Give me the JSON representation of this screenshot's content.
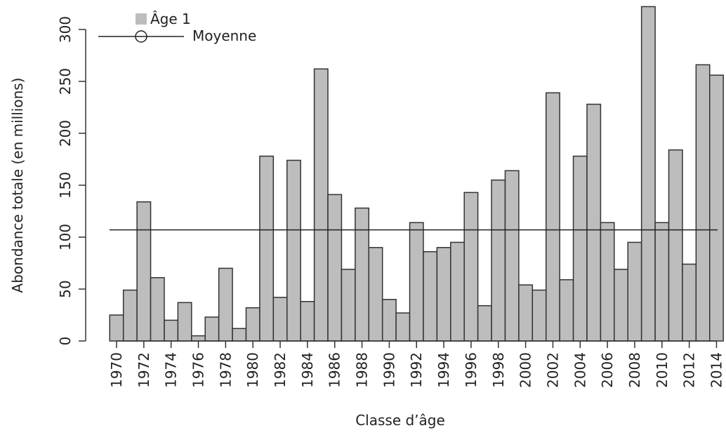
{
  "chart_data": {
    "type": "bar",
    "categories": [
      "1970",
      null,
      "1972",
      null,
      "1974",
      null,
      "1976",
      null,
      "1978",
      null,
      "1980",
      null,
      "1982",
      null,
      "1984",
      null,
      "1986",
      null,
      "1988",
      null,
      "1990",
      null,
      "1992",
      null,
      "1994",
      null,
      "1996",
      null,
      "1998",
      null,
      "2000",
      null,
      "2002",
      null,
      "2004",
      null,
      "2006",
      null,
      "2008",
      null,
      "2010",
      null,
      "2012",
      null,
      "2014"
    ],
    "series": [
      {
        "name": "Âge 1",
        "color": "#bdbdbd",
        "values": [
          25,
          49,
          134,
          61,
          20,
          37,
          5,
          23,
          70,
          12,
          32,
          178,
          42,
          174,
          38,
          262,
          141,
          69,
          128,
          90,
          40,
          27,
          114,
          86,
          90,
          95,
          143,
          34,
          155,
          164,
          54,
          49,
          239,
          59,
          178,
          228,
          114,
          69,
          95,
          322,
          114,
          184,
          74,
          266,
          256
        ]
      }
    ],
    "mean_line": {
      "name": "Moyenne",
      "value": 107
    },
    "xlabel": "Classe d’âge",
    "ylabel": "Abondance totale (en millions)",
    "ylim": [
      0,
      325
    ],
    "yticks": [
      0,
      50,
      100,
      150,
      200,
      250,
      300
    ]
  }
}
